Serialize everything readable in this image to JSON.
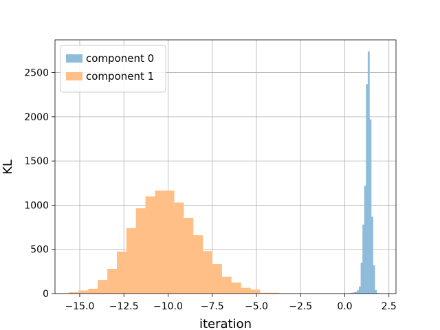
{
  "chart_data": {
    "type": "bar",
    "title": "",
    "xlabel": "iteration",
    "ylabel": "KL",
    "xlim": [
      -16.4,
      2.9
    ],
    "ylim": [
      0,
      2870
    ],
    "grid": true,
    "legend_position": "top-left",
    "x_ticks": [
      {
        "value": -15.0,
        "label": "−15.0"
      },
      {
        "value": -12.5,
        "label": "−12.5"
      },
      {
        "value": -10.0,
        "label": "−10.0"
      },
      {
        "value": -7.5,
        "label": "−7.5"
      },
      {
        "value": -5.0,
        "label": "−5.0"
      },
      {
        "value": -2.5,
        "label": "−2.5"
      },
      {
        "value": 0.0,
        "label": "0.0"
      },
      {
        "value": 2.5,
        "label": "2.5"
      }
    ],
    "y_ticks": [
      {
        "value": 0,
        "label": "0"
      },
      {
        "value": 500,
        "label": "500"
      },
      {
        "value": 1000,
        "label": "1000"
      },
      {
        "value": 1500,
        "label": "1500"
      },
      {
        "value": 2000,
        "label": "2000"
      },
      {
        "value": 2500,
        "label": "2500"
      }
    ],
    "series": [
      {
        "name": "component 1",
        "color": "#ffbf86",
        "bin_edges": [
          -15.6,
          -15.06,
          -14.52,
          -13.98,
          -13.44,
          -12.9,
          -12.36,
          -11.82,
          -11.28,
          -10.74,
          -10.2,
          -9.66,
          -9.12,
          -8.58,
          -8.04,
          -7.5,
          -6.96,
          -6.42,
          -5.88,
          -5.34,
          -4.8,
          -4.26,
          -3.72,
          -3.18,
          -2.64
        ],
        "counts": [
          15,
          35,
          55,
          155,
          280,
          475,
          740,
          965,
          1100,
          1165,
          1165,
          1030,
          855,
          660,
          480,
          335,
          190,
          125,
          65,
          45,
          10,
          10,
          3,
          1
        ]
      },
      {
        "name": "component 0",
        "color": "#8fbcdb",
        "bin_edges": [
          0.0,
          0.1,
          0.2,
          0.3,
          0.4,
          0.5,
          0.6,
          0.7,
          0.8,
          0.9,
          1.0,
          1.1,
          1.2,
          1.3,
          1.4,
          1.5,
          1.6,
          1.7,
          1.8,
          1.9,
          2.0
        ],
        "counts": [
          1,
          3,
          5,
          8,
          10,
          15,
          20,
          40,
          80,
          350,
          780,
          1220,
          2370,
          2740,
          1970,
          870,
          320,
          40,
          8,
          2
        ]
      }
    ]
  }
}
